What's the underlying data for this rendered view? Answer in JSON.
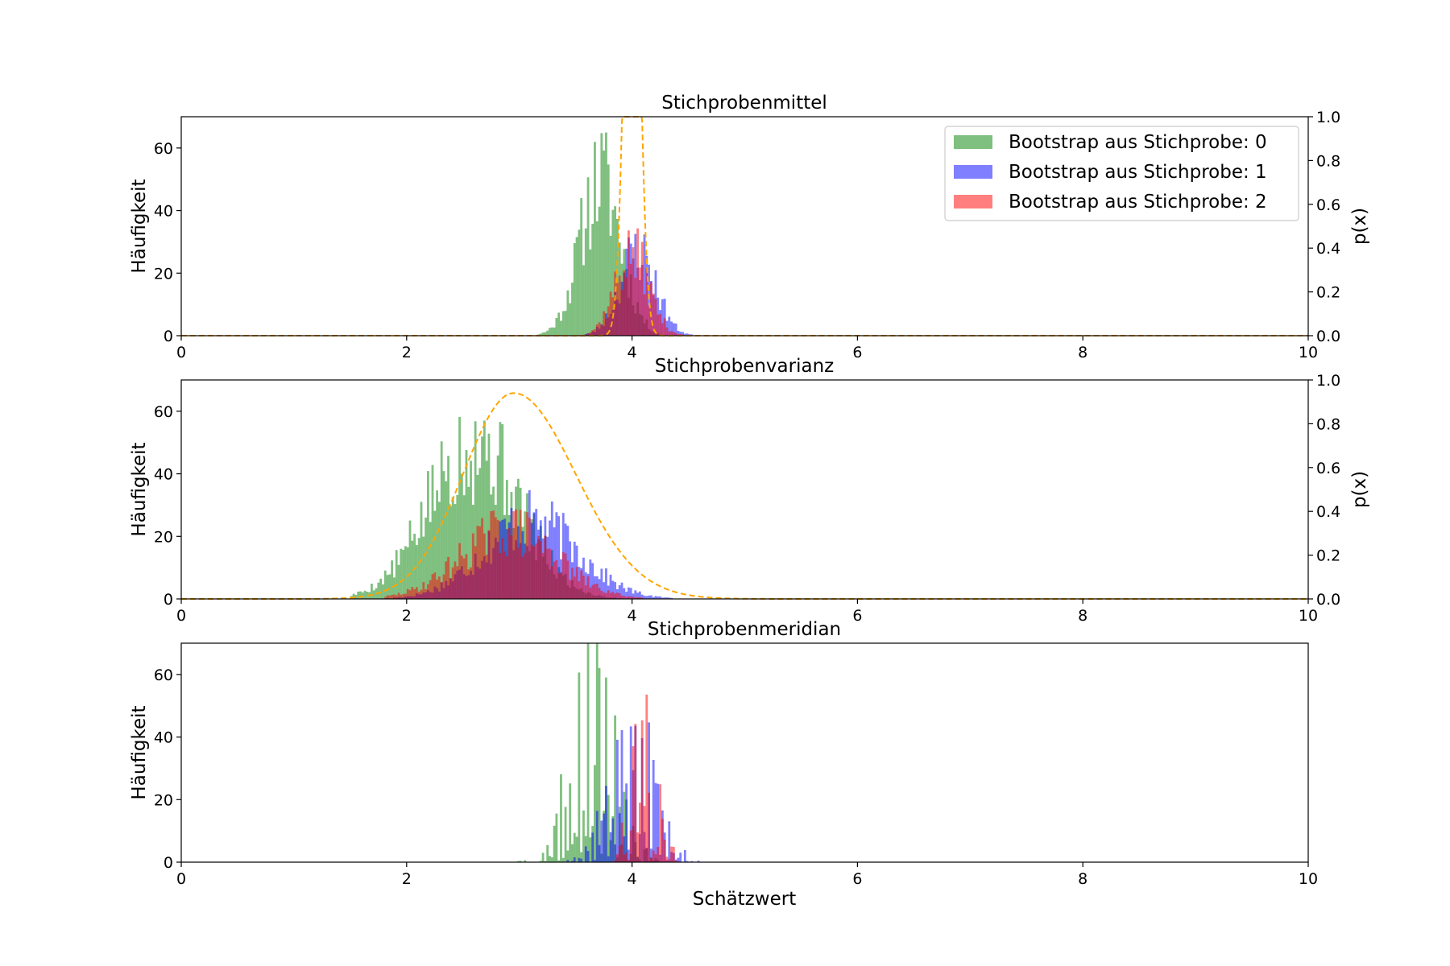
{
  "chart_data": [
    {
      "type": "bar",
      "title": "Stichprobenmittel",
      "xlabel": "",
      "ylabel": "Häufigkeit",
      "y2label": "p(x)",
      "xlim": [
        0,
        10
      ],
      "ylim": [
        0,
        70
      ],
      "y2lim": [
        0,
        1.0
      ],
      "xticks": [
        "0",
        "2",
        "4",
        "6",
        "8",
        "10"
      ],
      "yticks": [
        "0",
        "20",
        "40",
        "60"
      ],
      "y2ticks": [
        "0.0",
        "0.2",
        "0.4",
        "0.6",
        "0.8",
        "1.0"
      ],
      "legend_position": "top-right",
      "series": [
        {
          "name": "Bootstrap aus Stichprobe: 0",
          "color": "#008000",
          "alpha": 0.5,
          "center": 3.72,
          "spread": 0.18,
          "peak": 50,
          "min": 2.9,
          "max": 4.25,
          "seed": 11
        },
        {
          "name": "Bootstrap aus Stichprobe: 1",
          "color": "#0000ff",
          "alpha": 0.5,
          "center": 4.05,
          "spread": 0.16,
          "peak": 27,
          "min": 3.5,
          "max": 4.6,
          "seed": 23
        },
        {
          "name": "Bootstrap aus Stichprobe: 2",
          "color": "#ff0000",
          "alpha": 0.5,
          "center": 4.0,
          "spread": 0.15,
          "peak": 26,
          "min": 3.5,
          "max": 4.5,
          "seed": 37
        }
      ],
      "density": {
        "color": "#ffa500",
        "style": "dashed",
        "mu": 4.0,
        "sigma": 0.065,
        "scale": 0.415
      }
    },
    {
      "type": "bar",
      "title": "Stichprobenvarianz",
      "xlabel": "",
      "ylabel": "Häufigkeit",
      "y2label": "p(x)",
      "xlim": [
        0,
        10
      ],
      "ylim": [
        0,
        70
      ],
      "y2lim": [
        0,
        1.0
      ],
      "xticks": [
        "0",
        "2",
        "4",
        "6",
        "8",
        "10"
      ],
      "yticks": [
        "0",
        "20",
        "40",
        "60"
      ],
      "y2ticks": [
        "0.0",
        "0.2",
        "0.4",
        "0.6",
        "0.8",
        "1.0"
      ],
      "series": [
        {
          "name": "Bootstrap aus Stichprobe: 0",
          "color": "#008000",
          "alpha": 0.5,
          "center": 2.6,
          "spread": 0.4,
          "peak": 50,
          "min": 1.5,
          "max": 4.0,
          "seed": 5
        },
        {
          "name": "Bootstrap aus Stichprobe: 1",
          "color": "#0000ff",
          "alpha": 0.5,
          "center": 3.1,
          "spread": 0.42,
          "peak": 25,
          "min": 1.8,
          "max": 4.9,
          "seed": 17
        },
        {
          "name": "Bootstrap aus Stichprobe: 2",
          "color": "#ff0000",
          "alpha": 0.5,
          "center": 2.9,
          "spread": 0.42,
          "peak": 22,
          "min": 1.8,
          "max": 4.1,
          "seed": 29
        }
      ],
      "density": {
        "color": "#ffa500",
        "style": "dashed",
        "mode": 2.95,
        "sigma_left": 0.45,
        "sigma_right": 0.55,
        "peak": 0.94
      }
    },
    {
      "type": "bar",
      "title": "Stichprobenmeridian",
      "xlabel": "Schätzwert",
      "ylabel": "Häufigkeit",
      "xlim": [
        0,
        10
      ],
      "ylim": [
        0,
        70
      ],
      "xticks": [
        "0",
        "2",
        "4",
        "6",
        "8",
        "10"
      ],
      "yticks": [
        "0",
        "20",
        "40",
        "60"
      ],
      "series": [
        {
          "name": "Bootstrap aus Stichprobe: 0",
          "color": "#008000",
          "alpha": 0.5,
          "center": 3.65,
          "spread": 0.2,
          "peak": 55,
          "min": 2.9,
          "max": 4.25,
          "seed": 41,
          "spiky": true
        },
        {
          "name": "Bootstrap aus Stichprobe: 1",
          "color": "#0000ff",
          "alpha": 0.5,
          "center": 4.0,
          "spread": 0.2,
          "peak": 40,
          "min": 3.4,
          "max": 4.65,
          "seed": 53,
          "spiky": true
        },
        {
          "name": "Bootstrap aus Stichprobe: 2",
          "color": "#ff0000",
          "alpha": 0.5,
          "center": 4.1,
          "spread": 0.12,
          "peak": 40,
          "min": 3.5,
          "max": 4.4,
          "seed": 67,
          "spiky": true
        }
      ]
    }
  ]
}
